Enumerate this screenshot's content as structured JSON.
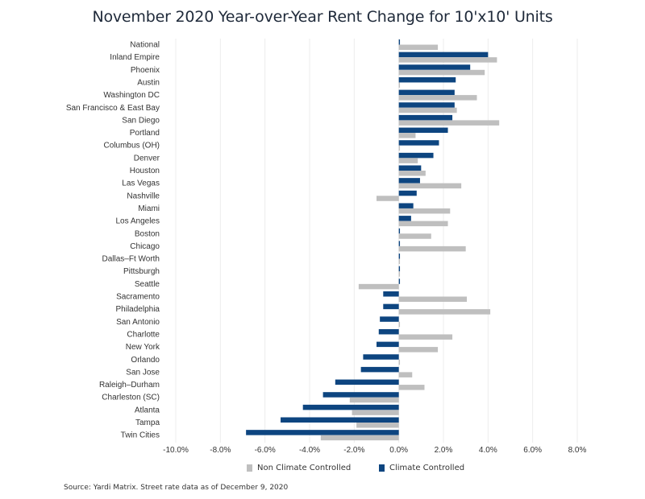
{
  "title": "November 2020 Year-over-Year Rent Change for 10'x10' Units",
  "source": "Source: Yardi Matrix. Street rate data as of December 9, 2020",
  "colors": {
    "climate": "#0d4580",
    "non_climate": "#bfbfbf"
  },
  "chart_data": {
    "type": "bar",
    "orientation": "horizontal",
    "title": "November 2020 Year-over-Year Rent Change for 10'x10' Units",
    "xlim": [
      -0.1,
      0.08
    ],
    "xticks": [
      -0.1,
      -0.08,
      -0.06,
      -0.04,
      -0.02,
      0.0,
      0.02,
      0.04,
      0.06,
      0.08
    ],
    "xtick_labels": [
      "-10.0%",
      "-8.0%",
      "-6.0%",
      "-4.0%",
      "-2.0%",
      "0.0%",
      "2.0%",
      "4.0%",
      "6.0%",
      "8.0%"
    ],
    "grid": true,
    "legend_position": "bottom",
    "categories": [
      "National",
      "Inland Empire",
      "Phoenix",
      "Austin",
      "Washington DC",
      "San Francisco & East Bay",
      "San Diego",
      "Portland",
      "Columbus (OH)",
      "Denver",
      "Houston",
      "Las Vegas",
      "Nashville",
      "Miami",
      "Los Angeles",
      "Boston",
      "Chicago",
      "Dallas–Ft Worth",
      "Pittsburgh",
      "Seattle",
      "Sacramento",
      "Philadelphia",
      "San Antonio",
      "Charlotte",
      "New York",
      "Orlando",
      "San Jose",
      "Raleigh–Durham",
      "Charleston (SC)",
      "Atlanta",
      "Tampa",
      "Twin Cities"
    ],
    "series": [
      {
        "name": "Non Climate Controlled",
        "color": "#bfbfbf",
        "values": [
          0.0175,
          0.044,
          0.0385,
          0.0005,
          0.035,
          0.026,
          0.045,
          0.0075,
          0.0005,
          0.0085,
          0.012,
          0.028,
          -0.01,
          0.023,
          0.022,
          0.0145,
          0.03,
          0.0005,
          0.0005,
          -0.018,
          0.0305,
          0.041,
          0.0005,
          0.024,
          0.0175,
          0.0005,
          0.006,
          0.0115,
          -0.022,
          -0.021,
          -0.019,
          -0.035
        ]
      },
      {
        "name": "Climate Controlled",
        "color": "#0d4580",
        "values": [
          0.0005,
          0.04,
          0.032,
          0.0255,
          0.025,
          0.025,
          0.024,
          0.022,
          0.018,
          0.0155,
          0.01,
          0.0095,
          0.008,
          0.0065,
          0.0055,
          0.0005,
          0.0005,
          0.0005,
          0.0005,
          0.0005,
          -0.007,
          -0.007,
          -0.0085,
          -0.009,
          -0.01,
          -0.016,
          -0.017,
          -0.0285,
          -0.034,
          -0.043,
          -0.053,
          -0.0685
        ]
      }
    ]
  },
  "legend": [
    {
      "label": "Non Climate Controlled",
      "color": "#bfbfbf"
    },
    {
      "label": "Climate Controlled",
      "color": "#0d4580"
    }
  ]
}
